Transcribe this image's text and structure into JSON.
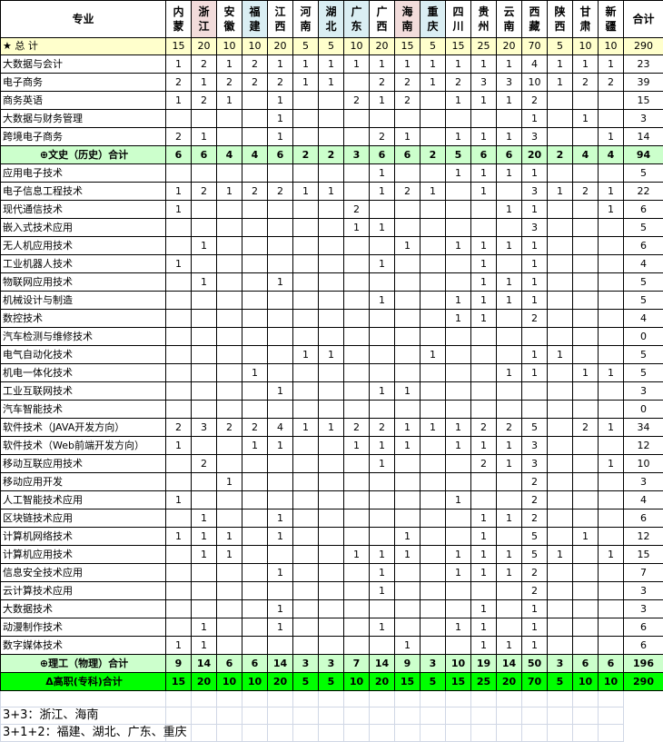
{
  "header": {
    "major_label": "专业",
    "provinces": [
      "内蒙",
      "浙江",
      "安徽",
      "福建",
      "江西",
      "河南",
      "湖北",
      "广东",
      "广西",
      "海南",
      "重庆",
      "四川",
      "贵州",
      "云南",
      "西藏",
      "陕西",
      "甘肃",
      "新疆"
    ],
    "total_label": "合计"
  },
  "highlight": {
    "pink_provinces": [
      "浙江",
      "海南"
    ],
    "blue_provinces": [
      "福建",
      "湖北",
      "广东",
      "重庆"
    ],
    "colors": {
      "pink": "#f2dcdb",
      "blue": "#daeef3",
      "star_row": "#ffffcc",
      "subtotal_row": "#ccffcc",
      "grand_row": "#00ff00"
    }
  },
  "rows": [
    {
      "type": "star",
      "name": "★  总  计",
      "values": [
        15,
        20,
        10,
        10,
        20,
        5,
        5,
        10,
        20,
        15,
        5,
        15,
        25,
        20,
        70,
        5,
        10,
        10
      ],
      "total": 290
    },
    {
      "type": "item",
      "name": "大数据与会计",
      "values": [
        1,
        2,
        1,
        2,
        1,
        1,
        1,
        1,
        1,
        1,
        1,
        1,
        1,
        1,
        4,
        1,
        1,
        1
      ],
      "total": 23
    },
    {
      "type": "item",
      "name": "电子商务",
      "values": [
        2,
        1,
        2,
        2,
        2,
        1,
        1,
        "",
        2,
        2,
        1,
        2,
        3,
        3,
        10,
        1,
        2,
        2
      ],
      "total": 39
    },
    {
      "type": "item",
      "name": "商务英语",
      "values": [
        1,
        2,
        1,
        "",
        1,
        "",
        "",
        2,
        1,
        2,
        "",
        1,
        1,
        1,
        2,
        "",
        "",
        ""
      ],
      "total": 15
    },
    {
      "type": "item",
      "name": "大数据与财务管理",
      "values": [
        "",
        "",
        "",
        "",
        1,
        "",
        "",
        "",
        "",
        "",
        "",
        "",
        "",
        "",
        1,
        "",
        1,
        ""
      ],
      "total": 3
    },
    {
      "type": "item",
      "name": "跨境电子商务",
      "values": [
        2,
        1,
        "",
        "",
        1,
        "",
        "",
        "",
        2,
        1,
        "",
        1,
        1,
        1,
        3,
        "",
        "",
        1
      ],
      "total": 14
    },
    {
      "type": "sub",
      "name": "⊕文史（历史）合计",
      "values": [
        6,
        6,
        4,
        4,
        6,
        2,
        2,
        3,
        6,
        6,
        2,
        5,
        6,
        6,
        20,
        2,
        4,
        4
      ],
      "total": 94
    },
    {
      "type": "item",
      "name": "应用电子技术",
      "values": [
        "",
        "",
        "",
        "",
        "",
        "",
        "",
        "",
        1,
        "",
        "",
        1,
        1,
        1,
        1,
        "",
        "",
        ""
      ],
      "total": 5
    },
    {
      "type": "item",
      "name": "电子信息工程技术",
      "values": [
        1,
        2,
        1,
        2,
        2,
        1,
        1,
        "",
        1,
        2,
        1,
        "",
        1,
        "",
        3,
        1,
        2,
        1
      ],
      "total": 22
    },
    {
      "type": "item",
      "name": "现代通信技术",
      "values": [
        1,
        "",
        "",
        "",
        "",
        "",
        "",
        2,
        "",
        "",
        "",
        "",
        "",
        1,
        1,
        "",
        "",
        1
      ],
      "total": 6
    },
    {
      "type": "item",
      "name": "嵌入式技术应用",
      "values": [
        "",
        "",
        "",
        "",
        "",
        "",
        "",
        1,
        1,
        "",
        "",
        "",
        "",
        "",
        3,
        "",
        "",
        ""
      ],
      "total": 5
    },
    {
      "type": "item",
      "name": "无人机应用技术",
      "values": [
        "",
        1,
        "",
        "",
        "",
        "",
        "",
        "",
        "",
        1,
        "",
        1,
        1,
        1,
        1,
        "",
        "",
        ""
      ],
      "total": 6
    },
    {
      "type": "item",
      "name": "工业机器人技术",
      "values": [
        1,
        "",
        "",
        "",
        "",
        "",
        "",
        "",
        1,
        "",
        "",
        "",
        1,
        "",
        1,
        "",
        "",
        ""
      ],
      "total": 4
    },
    {
      "type": "item",
      "name": "物联网应用技术",
      "values": [
        "",
        1,
        "",
        "",
        1,
        "",
        "",
        "",
        "",
        "",
        "",
        "",
        1,
        1,
        1,
        "",
        "",
        ""
      ],
      "total": 5
    },
    {
      "type": "item",
      "name": "机械设计与制造",
      "values": [
        "",
        "",
        "",
        "",
        "",
        "",
        "",
        "",
        1,
        "",
        "",
        1,
        1,
        1,
        1,
        "",
        "",
        ""
      ],
      "total": 5
    },
    {
      "type": "item",
      "name": "数控技术",
      "values": [
        "",
        "",
        "",
        "",
        "",
        "",
        "",
        "",
        "",
        "",
        "",
        1,
        1,
        "",
        2,
        "",
        "",
        ""
      ],
      "total": 4
    },
    {
      "type": "item",
      "name": "汽车检测与维修技术",
      "values": [
        "",
        "",
        "",
        "",
        "",
        "",
        "",
        "",
        "",
        "",
        "",
        "",
        "",
        "",
        "",
        "",
        "",
        ""
      ],
      "total": 0
    },
    {
      "type": "item",
      "name": "电气自动化技术",
      "values": [
        "",
        "",
        "",
        "",
        "",
        1,
        1,
        "",
        "",
        "",
        1,
        "",
        "",
        "",
        1,
        1,
        "",
        ""
      ],
      "total": 5
    },
    {
      "type": "item",
      "name": "机电一体化技术",
      "values": [
        "",
        "",
        "",
        1,
        "",
        "",
        "",
        "",
        "",
        "",
        "",
        "",
        "",
        1,
        1,
        "",
        1,
        1
      ],
      "total": 5
    },
    {
      "type": "item",
      "name": "工业互联网技术",
      "values": [
        "",
        "",
        "",
        "",
        1,
        "",
        "",
        "",
        1,
        1,
        "",
        "",
        "",
        "",
        "",
        "",
        "",
        ""
      ],
      "total": 3
    },
    {
      "type": "item",
      "name": "汽车智能技术",
      "values": [
        "",
        "",
        "",
        "",
        "",
        "",
        "",
        "",
        "",
        "",
        "",
        "",
        "",
        "",
        "",
        "",
        "",
        ""
      ],
      "total": 0
    },
    {
      "type": "item",
      "name": "软件技术（JAVA开发方向）",
      "values": [
        2,
        3,
        2,
        2,
        4,
        1,
        1,
        2,
        2,
        1,
        1,
        1,
        2,
        2,
        5,
        "",
        2,
        1
      ],
      "total": 34
    },
    {
      "type": "item",
      "name": "软件技术（Web前端开发方向）",
      "values": [
        1,
        "",
        "",
        1,
        1,
        "",
        "",
        1,
        1,
        1,
        "",
        1,
        1,
        1,
        3,
        "",
        "",
        ""
      ],
      "total": 12
    },
    {
      "type": "item",
      "name": "移动互联应用技术",
      "values": [
        "",
        2,
        "",
        "",
        "",
        "",
        "",
        "",
        1,
        "",
        "",
        "",
        2,
        1,
        3,
        "",
        "",
        1
      ],
      "total": 10
    },
    {
      "type": "item",
      "name": "移动应用开发",
      "values": [
        "",
        "",
        1,
        "",
        "",
        "",
        "",
        "",
        "",
        "",
        "",
        "",
        "",
        "",
        2,
        "",
        "",
        ""
      ],
      "total": 3
    },
    {
      "type": "item",
      "name": "人工智能技术应用",
      "values": [
        1,
        "",
        "",
        "",
        "",
        "",
        "",
        "",
        "",
        "",
        "",
        1,
        "",
        "",
        2,
        "",
        "",
        ""
      ],
      "total": 4
    },
    {
      "type": "item",
      "name": "区块链技术应用",
      "values": [
        "",
        1,
        "",
        "",
        1,
        "",
        "",
        "",
        "",
        "",
        "",
        "",
        1,
        1,
        2,
        "",
        "",
        ""
      ],
      "total": 6
    },
    {
      "type": "item",
      "name": "计算机网络技术",
      "values": [
        1,
        1,
        1,
        "",
        1,
        "",
        "",
        "",
        "",
        1,
        "",
        "",
        1,
        "",
        5,
        "",
        1,
        ""
      ],
      "total": 12
    },
    {
      "type": "item",
      "name": "计算机应用技术",
      "values": [
        "",
        1,
        1,
        "",
        "",
        "",
        "",
        1,
        1,
        1,
        "",
        1,
        1,
        1,
        5,
        1,
        "",
        1
      ],
      "total": 15
    },
    {
      "type": "item",
      "name": "信息安全技术应用",
      "values": [
        "",
        "",
        "",
        "",
        1,
        "",
        "",
        "",
        1,
        "",
        "",
        1,
        1,
        1,
        2,
        "",
        "",
        ""
      ],
      "total": 7
    },
    {
      "type": "item",
      "name": "云计算技术应用",
      "values": [
        "",
        "",
        "",
        "",
        "",
        "",
        "",
        "",
        1,
        "",
        "",
        "",
        "",
        "",
        2,
        "",
        "",
        ""
      ],
      "total": 3
    },
    {
      "type": "item",
      "name": "大数据技术",
      "values": [
        "",
        "",
        "",
        "",
        1,
        "",
        "",
        "",
        "",
        "",
        "",
        "",
        1,
        "",
        1,
        "",
        "",
        ""
      ],
      "total": 3
    },
    {
      "type": "item",
      "name": "动漫制作技术",
      "values": [
        "",
        1,
        "",
        "",
        1,
        "",
        "",
        "",
        1,
        "",
        "",
        1,
        1,
        "",
        1,
        "",
        "",
        ""
      ],
      "total": 6
    },
    {
      "type": "item",
      "name": "数字媒体技术",
      "values": [
        1,
        1,
        "",
        "",
        "",
        "",
        "",
        "",
        "",
        1,
        "",
        "",
        1,
        1,
        1,
        "",
        "",
        ""
      ],
      "total": 6
    },
    {
      "type": "sub",
      "name": "⊕理工（物理）合计",
      "values": [
        9,
        14,
        6,
        6,
        14,
        3,
        3,
        7,
        14,
        9,
        3,
        10,
        19,
        14,
        50,
        3,
        6,
        6
      ],
      "total": 196
    },
    {
      "type": "grand",
      "name": "Δ高职(专科)合计",
      "values": [
        15,
        20,
        10,
        10,
        20,
        5,
        5,
        10,
        20,
        15,
        5,
        15,
        25,
        20,
        70,
        5,
        10,
        10
      ],
      "total": 290
    }
  ],
  "notes": [
    "3+3：浙江、海南",
    "3+1+2：福建、湖北、广东、重庆"
  ]
}
